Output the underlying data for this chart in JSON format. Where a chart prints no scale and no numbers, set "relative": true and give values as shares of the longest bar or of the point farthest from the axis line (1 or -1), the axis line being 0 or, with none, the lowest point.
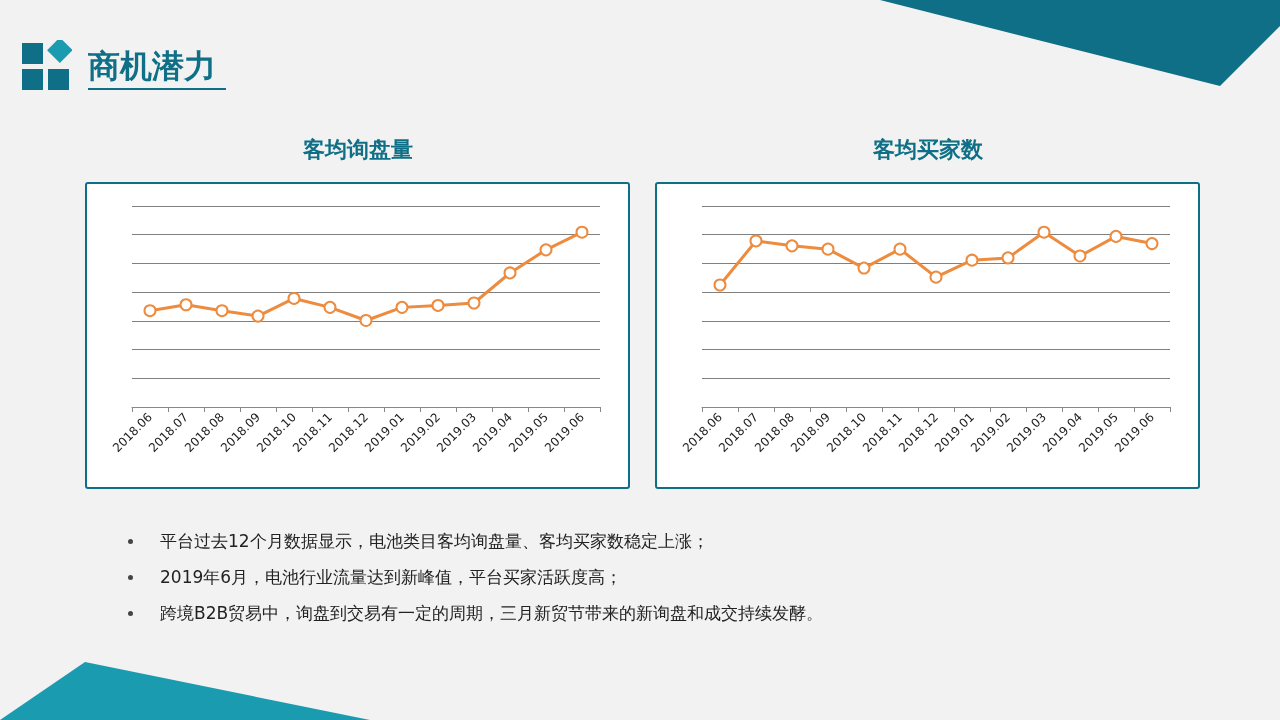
{
  "chart_data": [
    {
      "type": "line",
      "title": "客均询盘量",
      "relative": true,
      "grid": "y",
      "marker": "circle",
      "line_style": "solid",
      "categories": [
        "2018.06",
        "2018.07",
        "2018.08",
        "2018.09",
        "2018.10",
        "2018.11",
        "2018.12",
        "2019.01",
        "2019.02",
        "2019.03",
        "2019.04",
        "2019.05",
        "2019.06"
      ],
      "series": [
        {
          "color": "#ed8b3e",
          "values": [
            0.551,
            0.585,
            0.551,
            0.52,
            0.621,
            0.57,
            0.495,
            0.57,
            0.581,
            0.595,
            0.767,
            0.899,
            1
          ]
        }
      ]
    },
    {
      "type": "line",
      "title": "客均买家数",
      "relative": true,
      "grid": "y",
      "marker": "circle",
      "line_style": "solid",
      "categories": [
        "2018.06",
        "2018.07",
        "2018.08",
        "2018.09",
        "2018.10",
        "2018.11",
        "2018.12",
        "2019.01",
        "2019.02",
        "2019.03",
        "2019.04",
        "2019.05",
        "2019.06"
      ],
      "series": [
        {
          "color": "#ed8b3e",
          "values": [
            0.698,
            0.95,
            0.922,
            0.903,
            0.795,
            0.903,
            0.743,
            0.84,
            0.853,
            1,
            0.864,
            0.976,
            0.935
          ]
        }
      ]
    },
    {
      "type": "other",
      "title": "商机潜力",
      "annotations": [
        "平台过去12个月数据显示，电池类目客均询盘量、客均买家数稳定上涨；",
        "2019年6月，电池行业流量达到新峰值，平台买家活跃度高；",
        "跨境B2B贸易中，询盘到交易有一定的周期，三月新贸节带来的新询盘和成交持续发酵。"
      ]
    }
  ]
}
